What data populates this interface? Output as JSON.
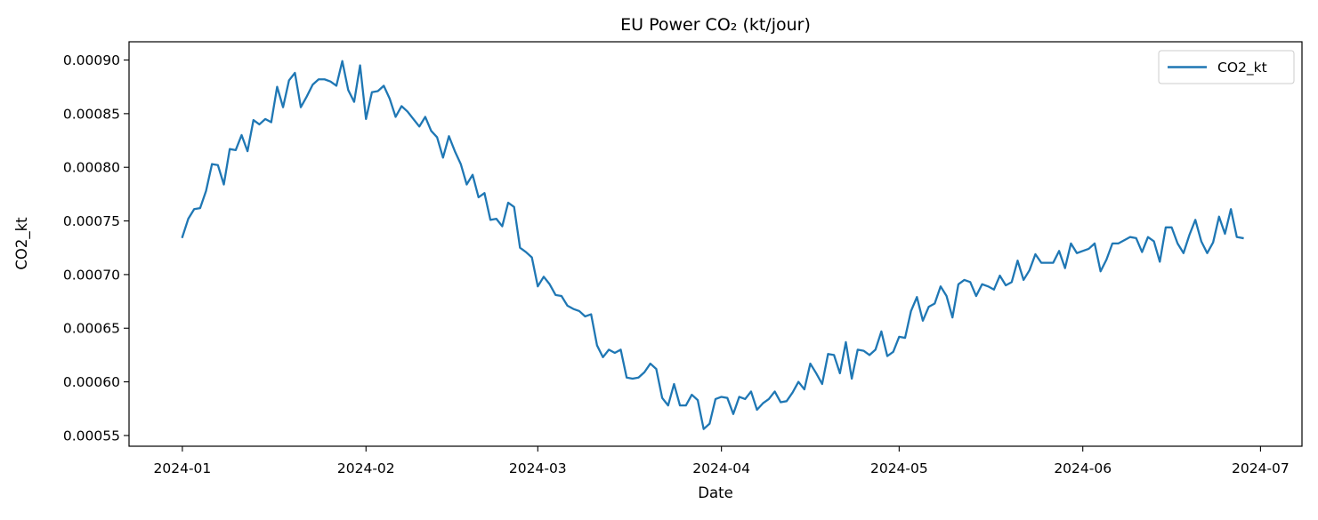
{
  "chart_data": {
    "type": "line",
    "title": "EU Power CO₂ (kt/jour)",
    "xlabel": "Date",
    "ylabel": "CO2_kt",
    "xlim": [
      "2023-12-23",
      "2024-07-08"
    ],
    "ylim": [
      0.00054,
      0.000917
    ],
    "grid": false,
    "legend_position": "top-right",
    "x_ticks": [
      "2024-01",
      "2024-02",
      "2024-03",
      "2024-04",
      "2024-05",
      "2024-06",
      "2024-07"
    ],
    "y_ticks": [
      "0.00055",
      "0.00060",
      "0.00065",
      "0.00070",
      "0.00075",
      "0.00080",
      "0.00085",
      "0.00090"
    ],
    "y_tick_values": [
      0.00055,
      0.0006,
      0.00065,
      0.0007,
      0.00075,
      0.0008,
      0.00085,
      0.0009
    ],
    "x_start": "2024-01-01",
    "series": [
      {
        "name": "CO2_kt",
        "color": "#1f77b4",
        "values": [
          0.000735,
          0.000752,
          0.000761,
          0.000762,
          0.000778,
          0.000803,
          0.000802,
          0.000784,
          0.000817,
          0.000816,
          0.00083,
          0.000815,
          0.000844,
          0.00084,
          0.000845,
          0.000842,
          0.000875,
          0.000856,
          0.000881,
          0.000888,
          0.000856,
          0.000866,
          0.000877,
          0.000882,
          0.000882,
          0.00088,
          0.000876,
          0.000899,
          0.000872,
          0.000861,
          0.000895,
          0.000845,
          0.00087,
          0.000871,
          0.000876,
          0.000864,
          0.000847,
          0.000857,
          0.000852,
          0.000845,
          0.000838,
          0.000847,
          0.000834,
          0.000828,
          0.000809,
          0.000829,
          0.000815,
          0.000803,
          0.000784,
          0.000793,
          0.000772,
          0.000776,
          0.000751,
          0.000752,
          0.000745,
          0.000767,
          0.000763,
          0.000725,
          0.000721,
          0.000716,
          0.000689,
          0.000698,
          0.000691,
          0.000681,
          0.00068,
          0.000671,
          0.000668,
          0.000666,
          0.000661,
          0.000663,
          0.000634,
          0.000623,
          0.00063,
          0.000627,
          0.00063,
          0.000604,
          0.000603,
          0.000604,
          0.000609,
          0.000617,
          0.000612,
          0.000585,
          0.000578,
          0.000598,
          0.000578,
          0.000578,
          0.000588,
          0.000583,
          0.000556,
          0.000561,
          0.000584,
          0.000586,
          0.000585,
          0.00057,
          0.000586,
          0.000584,
          0.000591,
          0.000574,
          0.00058,
          0.000584,
          0.000591,
          0.000581,
          0.000582,
          0.00059,
          0.0006,
          0.000593,
          0.000617,
          0.000608,
          0.000598,
          0.000626,
          0.000625,
          0.000608,
          0.000637,
          0.000603,
          0.00063,
          0.000629,
          0.000625,
          0.00063,
          0.000647,
          0.000624,
          0.000628,
          0.000642,
          0.000641,
          0.000666,
          0.000679,
          0.000657,
          0.00067,
          0.000673,
          0.000689,
          0.00068,
          0.00066,
          0.000691,
          0.000695,
          0.000693,
          0.00068,
          0.000691,
          0.000689,
          0.000686,
          0.000699,
          0.00069,
          0.000693,
          0.000713,
          0.000695,
          0.000704,
          0.000719,
          0.000711,
          0.000711,
          0.000711,
          0.000722,
          0.000706,
          0.000729,
          0.00072,
          0.000722,
          0.000724,
          0.000729,
          0.000703,
          0.000714,
          0.000729,
          0.000729,
          0.000732,
          0.000735,
          0.000734,
          0.000721,
          0.000735,
          0.000731,
          0.000712,
          0.000744,
          0.000744,
          0.000729,
          0.00072,
          0.000737,
          0.000751,
          0.000731,
          0.00072,
          0.00073,
          0.000754,
          0.000738,
          0.000761,
          0.000735,
          0.000734
        ]
      }
    ]
  }
}
